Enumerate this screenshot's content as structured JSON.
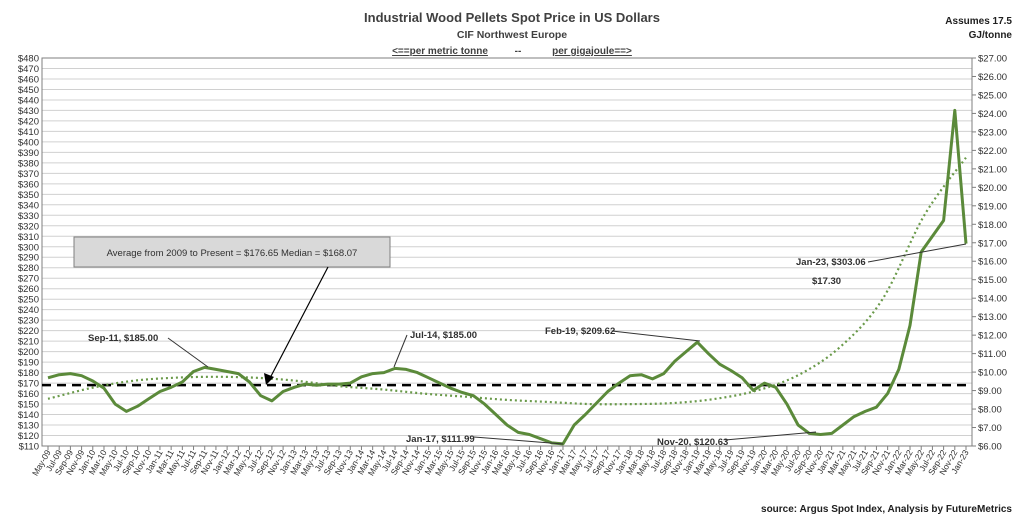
{
  "chart_data": {
    "type": "line",
    "title": "Industrial Wood Pellets Spot Price in US Dollars",
    "subtitle": "CIF Northwest Europe",
    "axis_note_left": "<==per metric tonne",
    "axis_note_sep": "--",
    "axis_note_right": "per gigajoule==>",
    "side_note_1": "Assumes 17.5",
    "side_note_2": "GJ/tonne",
    "source": "source: Argus Spot Index, Analysis by FutureMetrics",
    "average_box": "Average from 2009 to Present = $176.65   Median = $168.07",
    "average_value": 168,
    "ylim_left": [
      110,
      480
    ],
    "ylim_right": [
      6,
      27
    ],
    "y_left_step": 10,
    "y_right_step": 1,
    "grid": true,
    "line_color": "#5b8a3a",
    "trend_color": "#5b8a3a",
    "x": [
      "May-09",
      "Jul-09",
      "Sep-09",
      "Nov-09",
      "Jan-10",
      "Mar-10",
      "May-10",
      "Jul-10",
      "Sep-10",
      "Nov-10",
      "Jan-11",
      "Mar-11",
      "May-11",
      "Jul-11",
      "Sep-11",
      "Nov-11",
      "Jan-12",
      "Mar-12",
      "May-12",
      "Jul-12",
      "Sep-12",
      "Nov-12",
      "Jan-13",
      "Mar-13",
      "May-13",
      "Jul-13",
      "Sep-13",
      "Nov-13",
      "Jan-14",
      "Mar-14",
      "May-14",
      "Jul-14",
      "Sep-14",
      "Nov-14",
      "Jan-15",
      "Mar-15",
      "May-15",
      "Jul-15",
      "Sep-15",
      "Nov-15",
      "Jan-16",
      "Mar-16",
      "May-16",
      "Jul-16",
      "Sep-16",
      "Nov-16",
      "Jan-17",
      "Mar-17",
      "May-17",
      "Jul-17",
      "Sep-17",
      "Nov-17",
      "Jan-18",
      "Mar-18",
      "May-18",
      "Jul-18",
      "Sep-18",
      "Nov-18",
      "Jan-19",
      "Mar-19",
      "May-19",
      "Jul-19",
      "Sep-19",
      "Nov-19",
      "Jan-20",
      "Mar-20",
      "May-20",
      "Jul-20",
      "Sep-20",
      "Nov-20",
      "Jan-21",
      "Mar-21",
      "May-21",
      "Jul-21",
      "Sep-21",
      "Nov-21",
      "Jan-22",
      "Mar-22",
      "May-22",
      "Jul-22",
      "Sep-22",
      "Nov-22",
      "Jan-23"
    ],
    "series": [
      {
        "values": [
          175,
          178,
          179,
          177,
          172,
          165,
          150,
          143,
          148,
          155,
          162,
          166,
          171,
          181,
          185,
          183,
          181,
          179,
          171,
          158,
          153,
          162,
          166,
          169,
          168,
          169,
          169,
          170,
          176,
          179,
          180,
          184,
          183,
          180,
          175,
          170,
          165,
          161,
          158,
          150,
          140,
          130,
          123,
          121,
          117,
          113,
          112,
          130,
          140,
          151,
          162,
          170,
          177,
          178,
          174,
          179,
          191,
          200,
          209,
          198,
          188,
          182,
          175,
          163,
          170,
          166,
          150,
          130,
          122,
          121,
          122,
          130,
          138,
          143,
          147,
          160,
          183,
          225,
          295,
          310,
          325,
          430,
          303
        ]
      }
    ],
    "trend": [
      155,
      165,
      172,
      175,
      176,
      175,
      172,
      167,
      164,
      160,
      157,
      154,
      152,
      150,
      150,
      151,
      155,
      163,
      178,
      205,
      250,
      330,
      385
    ],
    "annotations": [
      {
        "text": "Sep-11, $185.00"
      },
      {
        "text": "Jul-14, $185.00"
      },
      {
        "text": "Feb-19, $209.62"
      },
      {
        "text": "Jan-17, $111.99"
      },
      {
        "text": "Nov-20, $120.63"
      },
      {
        "text": "Jan-23, $303.06"
      },
      {
        "text": "$17.30"
      }
    ]
  }
}
